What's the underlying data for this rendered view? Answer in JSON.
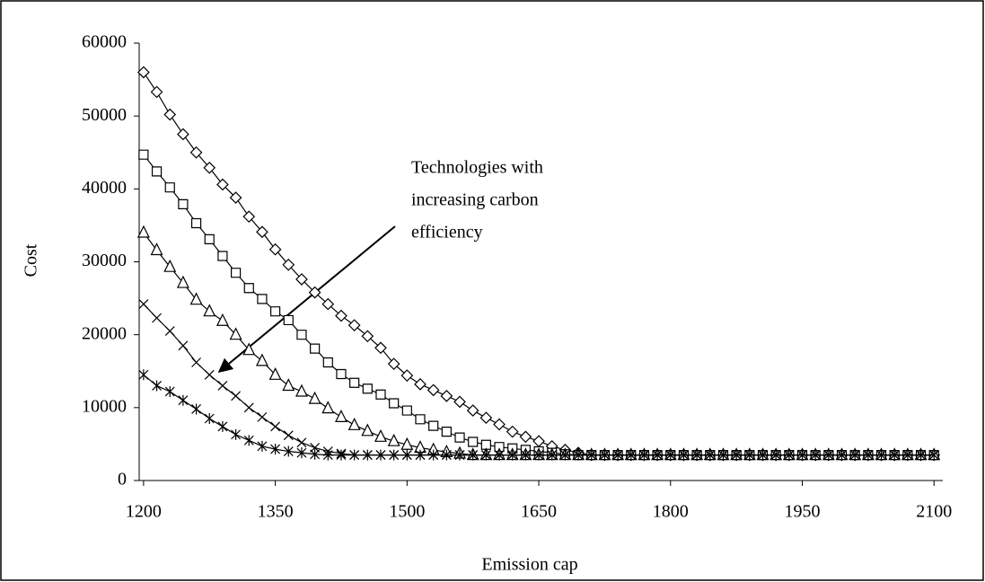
{
  "chart_data": {
    "type": "line",
    "xlabel": "Emission cap",
    "ylabel": "Cost",
    "annotation": [
      "Technologies with",
      "increasing carbon",
      "efficiency"
    ],
    "x": [
      1200,
      1215,
      1230,
      1245,
      1260,
      1275,
      1290,
      1305,
      1320,
      1335,
      1350,
      1365,
      1380,
      1395,
      1410,
      1425,
      1440,
      1455,
      1470,
      1485,
      1500,
      1515,
      1530,
      1545,
      1560,
      1575,
      1590,
      1605,
      1620,
      1635,
      1650,
      1665,
      1680,
      1695,
      1710,
      1725,
      1740,
      1755,
      1770,
      1785,
      1800,
      1815,
      1830,
      1845,
      1860,
      1875,
      1890,
      1905,
      1920,
      1935,
      1950,
      1965,
      1980,
      1995,
      2010,
      2025,
      2040,
      2055,
      2070,
      2085,
      2100
    ],
    "series": [
      {
        "color": "#000000",
        "marker": "diamond",
        "values": [
          56000,
          53300,
          50200,
          47500,
          45000,
          42900,
          40600,
          38800,
          36200,
          34100,
          31700,
          29600,
          27600,
          25800,
          24200,
          22600,
          21300,
          19800,
          18200,
          16000,
          14400,
          13200,
          12400,
          11600,
          10800,
          9600,
          8600,
          7700,
          6700,
          6000,
          5400,
          4700,
          4200,
          3800,
          3500,
          3500,
          3500,
          3500,
          3500,
          3500,
          3500,
          3500,
          3500,
          3500,
          3500,
          3500,
          3500,
          3500,
          3500,
          3500,
          3500,
          3500,
          3500,
          3500,
          3500,
          3500,
          3500,
          3500,
          3500,
          3500,
          3500
        ]
      },
      {
        "color": "#000000",
        "marker": "square",
        "values": [
          44700,
          42400,
          40200,
          37900,
          35300,
          33100,
          30800,
          28500,
          26400,
          24900,
          23200,
          22000,
          20000,
          18100,
          16200,
          14600,
          13400,
          12600,
          11800,
          10600,
          9600,
          8400,
          7500,
          6700,
          5900,
          5300,
          4900,
          4600,
          4400,
          4200,
          4000,
          3800,
          3600,
          3500,
          3500,
          3500,
          3500,
          3500,
          3500,
          3500,
          3500,
          3500,
          3500,
          3500,
          3500,
          3500,
          3500,
          3500,
          3500,
          3500,
          3500,
          3500,
          3500,
          3500,
          3500,
          3500,
          3500,
          3500,
          3500,
          3500,
          3500
        ]
      },
      {
        "color": "#000000",
        "marker": "triangle",
        "values": [
          34000,
          31600,
          29300,
          27100,
          24800,
          23200,
          21900,
          20000,
          17900,
          16400,
          14500,
          13000,
          12200,
          11200,
          9900,
          8700,
          7600,
          6800,
          6000,
          5400,
          4900,
          4500,
          4200,
          3900,
          3700,
          3500,
          3500,
          3500,
          3500,
          3500,
          3500,
          3500,
          3500,
          3500,
          3500,
          3500,
          3500,
          3500,
          3500,
          3500,
          3500,
          3500,
          3500,
          3500,
          3500,
          3500,
          3500,
          3500,
          3500,
          3500,
          3500,
          3500,
          3500,
          3500,
          3500,
          3500,
          3500,
          3500,
          3500,
          3500,
          3500
        ]
      },
      {
        "color": "#000000",
        "marker": "cross",
        "values": [
          24200,
          22300,
          20500,
          18500,
          16200,
          14500,
          13000,
          11600,
          10000,
          8700,
          7400,
          6200,
          5200,
          4500,
          4000,
          3700,
          3500,
          3500,
          3500,
          3500,
          3500,
          3500,
          3500,
          3500,
          3500,
          3500,
          3500,
          3500,
          3500,
          3500,
          3500,
          3500,
          3500,
          3500,
          3500,
          3500,
          3500,
          3500,
          3500,
          3500,
          3500,
          3500,
          3500,
          3500,
          3500,
          3500,
          3500,
          3500,
          3500,
          3500,
          3500,
          3500,
          3500,
          3500,
          3500,
          3500,
          3500,
          3500,
          3500,
          3500,
          3500
        ]
      },
      {
        "color": "#000000",
        "marker": "star",
        "values": [
          14500,
          13000,
          12200,
          11000,
          9800,
          8500,
          7400,
          6300,
          5500,
          4700,
          4300,
          4000,
          3800,
          3600,
          3500,
          3500,
          3500,
          3500,
          3500,
          3500,
          3500,
          3500,
          3500,
          3500,
          3500,
          3500,
          3500,
          3500,
          3500,
          3500,
          3500,
          3500,
          3500,
          3500,
          3500,
          3500,
          3500,
          3500,
          3500,
          3500,
          3500,
          3500,
          3500,
          3500,
          3500,
          3500,
          3500,
          3500,
          3500,
          3500,
          3500,
          3500,
          3500,
          3500,
          3500,
          3500,
          3500,
          3500,
          3500,
          3500,
          3500
        ]
      }
    ],
    "xlim": [
      1195,
      2110
    ],
    "xticks": [
      1200,
      1350,
      1500,
      1650,
      1800,
      1950,
      2100
    ],
    "ylim": [
      0,
      60000
    ],
    "yticks": [
      0,
      10000,
      20000,
      30000,
      40000,
      50000,
      60000
    ],
    "grid": false
  }
}
